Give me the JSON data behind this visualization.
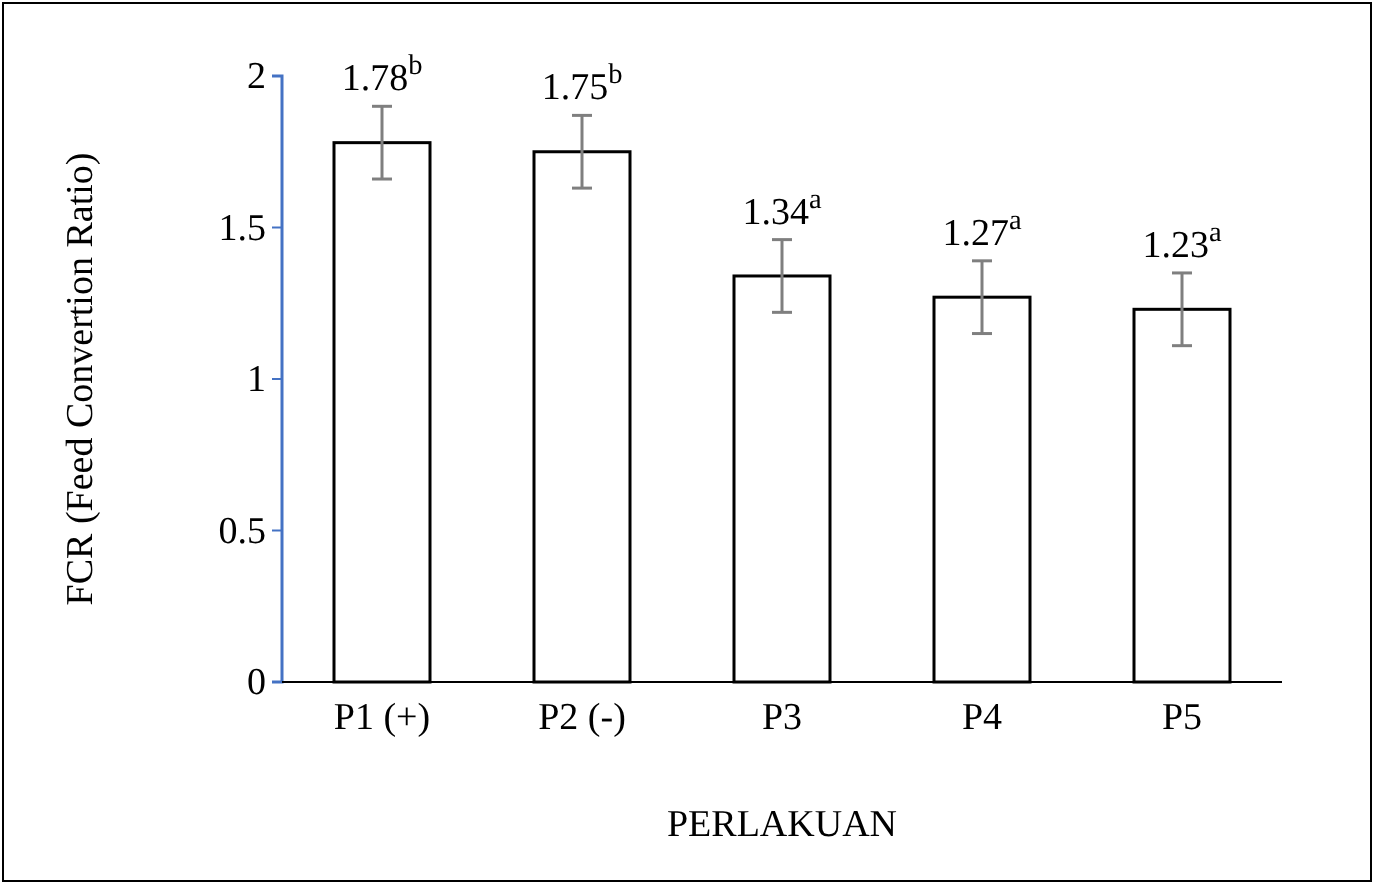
{
  "chart_data": {
    "type": "bar",
    "xlabel": "PERLAKUAN",
    "ylabel": "FCR (Feed Convertion Ratio)",
    "categories": [
      "P1 (+)",
      "P2 (-)",
      "P3",
      "P4",
      "P5"
    ],
    "values": [
      1.78,
      1.75,
      1.34,
      1.27,
      1.23
    ],
    "errors": [
      0.12,
      0.12,
      0.12,
      0.12,
      0.12
    ],
    "value_labels": [
      "1.78$^{b}$",
      "1.75$^{b}$",
      "1.34$^{a}$",
      "1.27$^{a}$",
      "1.23$^{a}$"
    ],
    "color": "#ffffff",
    "ylim": [
      0,
      2
    ],
    "yticks": [
      0,
      0.5,
      1,
      1.5,
      2
    ],
    "grid": false
  }
}
